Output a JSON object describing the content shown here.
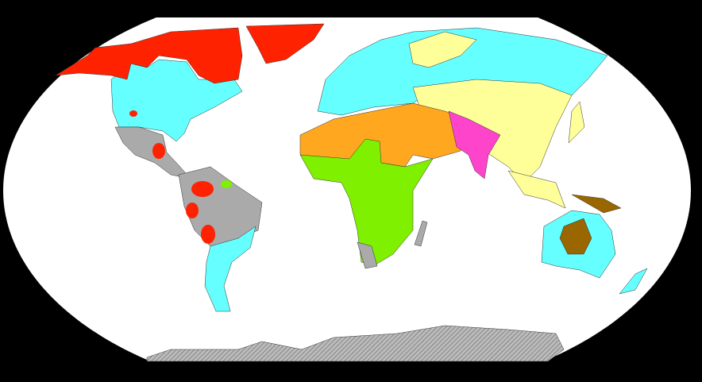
{
  "map": {
    "projection": "world-oval",
    "background": "#000000",
    "ocean": "#ffffff",
    "colors": {
      "red": "#ff2200",
      "cyan": "#66ffff",
      "gray": "#aaaaaa",
      "yellow": "#ffff99",
      "orange": "#ffa81f",
      "green": "#7ff000",
      "magenta": "#ff44cc",
      "brown": "#996600",
      "antarctica": "#bbbbbb"
    }
  }
}
